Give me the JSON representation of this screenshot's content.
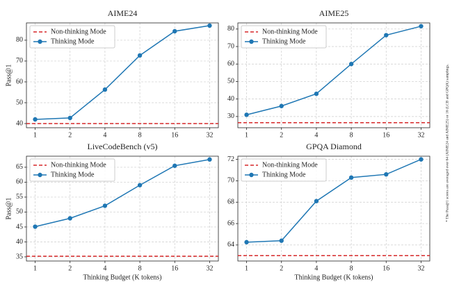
{
  "chart_data": [
    {
      "type": "line",
      "title": "AIME24",
      "ylabel": "Pass@1",
      "categories": [
        "1",
        "2",
        "4",
        "8",
        "16",
        "32"
      ],
      "reference_line": {
        "name": "Non-thinking Mode",
        "value": 40,
        "color": "#d62728"
      },
      "series": [
        {
          "name": "Thinking Mode",
          "color": "#1f77b4",
          "values": [
            42,
            42.7,
            56.3,
            72.7,
            84.3,
            87
          ]
        }
      ],
      "ylim": [
        38,
        88.3
      ],
      "yticks": [
        40,
        50,
        60,
        70,
        80
      ],
      "grid": true,
      "legend": "upper left"
    },
    {
      "type": "line",
      "title": "AIME25",
      "categories": [
        "1",
        "2",
        "4",
        "8",
        "16",
        "32"
      ],
      "reference_line": {
        "name": "Non-thinking Mode",
        "value": 26.5,
        "color": "#d62728"
      },
      "series": [
        {
          "name": "Thinking Mode",
          "color": "#1f77b4",
          "values": [
            31,
            36,
            43,
            60,
            76.5,
            81.6
          ]
        }
      ],
      "ylim": [
        23.6,
        83.5
      ],
      "yticks": [
        30,
        40,
        50,
        60,
        70,
        80
      ],
      "grid": true,
      "legend": "upper left"
    },
    {
      "type": "line",
      "title": "LiveCodeBench (v5)",
      "ylabel": "Pass@1",
      "xlabel": "Thinking Budget (K tokens)",
      "categories": [
        "1",
        "2",
        "4",
        "8",
        "16",
        "32"
      ],
      "reference_line": {
        "name": "Non-thinking Mode",
        "value": 35.2,
        "color": "#d62728"
      },
      "series": [
        {
          "name": "Thinking Mode",
          "color": "#1f77b4",
          "values": [
            45.1,
            47.9,
            52.1,
            59,
            65.5,
            67.6
          ]
        }
      ],
      "ylim": [
        33.6,
        68.7
      ],
      "yticks": [
        35,
        40,
        45,
        50,
        55,
        60,
        65
      ],
      "grid": true,
      "legend": "upper left"
    },
    {
      "type": "line",
      "title": "GPQA Diamond",
      "xlabel": "Thinking Budget (K tokens)",
      "categories": [
        "1",
        "2",
        "4",
        "8",
        "16",
        "32"
      ],
      "reference_line": {
        "name": "Non-thinking Mode",
        "value": 63,
        "color": "#d62728"
      },
      "series": [
        {
          "name": "Thinking Mode",
          "color": "#1f77b4",
          "values": [
            64.26,
            64.4,
            68.1,
            70.3,
            70.6,
            72
          ]
        }
      ],
      "ylim": [
        62.5,
        72.3
      ],
      "yticks": [
        64,
        66,
        68,
        70,
        72
      ],
      "grid": true,
      "legend": "upper left"
    }
  ],
  "note": "* The Pass@1 scores are averaged over 64 (AIME24 and AIME25) or 16 (LCB and GPQA) samplings."
}
